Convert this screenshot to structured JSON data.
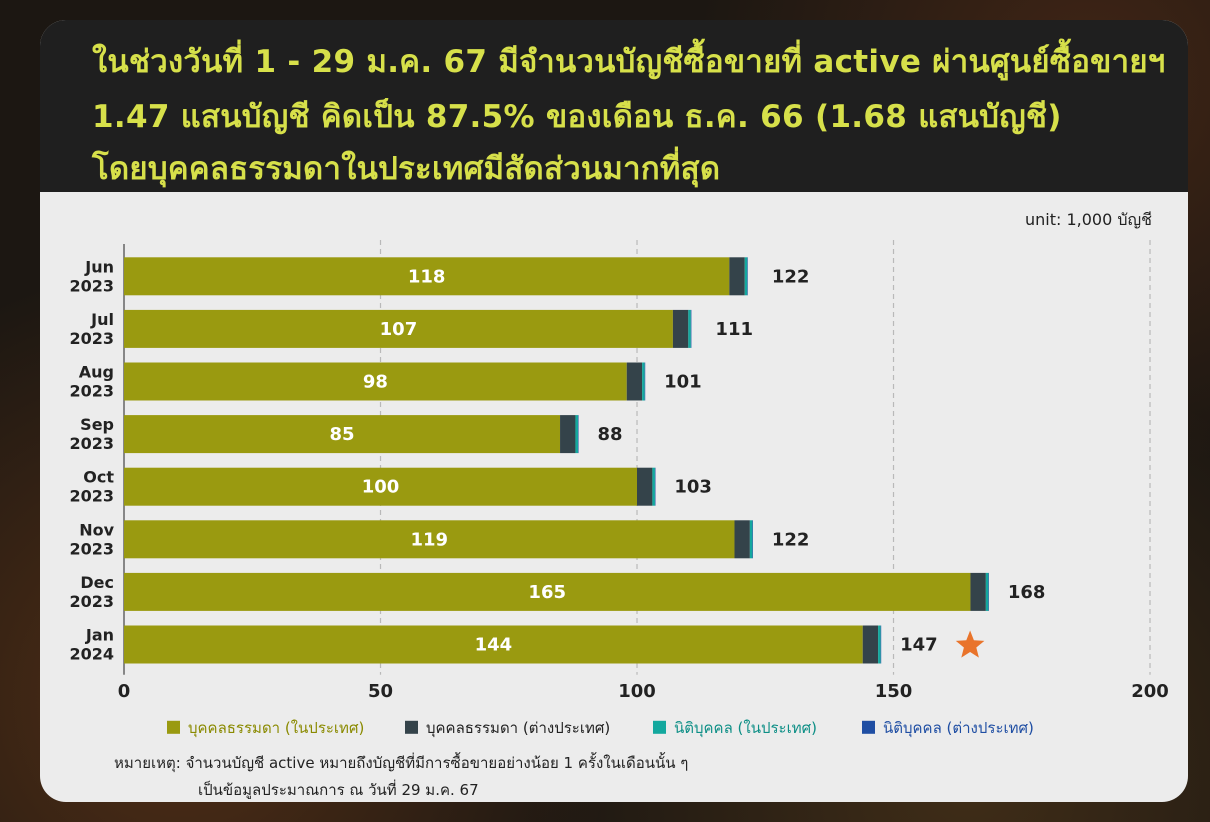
{
  "header": {
    "title_lines": [
      "ในช่วงวันที่ 1 - 29 ม.ค. 67 มีจำนวนบัญชีซื้อขายที่ active ผ่านศูนย์ซื้อขายฯ",
      "1.47 แสนบัญชี คิดเป็น 87.5% ของเดือน ธ.ค. 66 (1.68 แสนบัญชี)",
      "โดยบุคคลธรรมดาในประเทศมีสัดส่วนมากที่สุด"
    ]
  },
  "unit_label": "unit: 1,000 บัญชี",
  "colors": {
    "title": "#d7e04a",
    "domestic_individual": "#9a9a10",
    "foreign_individual": "#34434a",
    "domestic_juristic": "#13a89e",
    "foreign_juristic": "#1f4ea3",
    "highlight_star": "#e9742b"
  },
  "chart_data": {
    "type": "bar",
    "orientation": "horizontal",
    "stacked": true,
    "categories": [
      [
        "Jun",
        "2023"
      ],
      [
        "Jul",
        "2023"
      ],
      [
        "Aug",
        "2023"
      ],
      [
        "Sep",
        "2023"
      ],
      [
        "Oct",
        "2023"
      ],
      [
        "Nov",
        "2023"
      ],
      [
        "Dec",
        "2023"
      ],
      [
        "Jan",
        "2024"
      ]
    ],
    "series": [
      {
        "name": "บุคคลธรรมดา (ในประเทศ)",
        "values": [
          118,
          107,
          98,
          85,
          100,
          119,
          165,
          144
        ]
      },
      {
        "name": "บุคคลธรรมดา (ต่างประเทศ)",
        "values": [
          3,
          3,
          3,
          3,
          3,
          3,
          3,
          3
        ]
      },
      {
        "name": "นิติบุคคล (ในประเทศ)",
        "values": [
          0.5,
          0.5,
          0.5,
          0.5,
          0.5,
          0.5,
          0.5,
          0.5
        ]
      },
      {
        "name": "นิติบุคคล (ต่างประเทศ)",
        "values": [
          0.1,
          0.1,
          0.1,
          0.1,
          0.1,
          0.1,
          0.1,
          0.1
        ]
      }
    ],
    "segment_labels": [
      118,
      107,
      98,
      85,
      100,
      119,
      165,
      144
    ],
    "totals": [
      122,
      111,
      101,
      88,
      103,
      122,
      168,
      147
    ],
    "xlim": [
      0,
      200
    ],
    "xticks": [
      0,
      50,
      100,
      150,
      200
    ],
    "grid": "vertical dashed",
    "legend_position": "bottom",
    "highlight": {
      "category_index": 7,
      "marker": "star"
    }
  },
  "footnote": {
    "lines": [
      "หมายเหตุ: จำนวนบัญชี active หมายถึงบัญชีที่มีการซื้อขายอย่างน้อย 1 ครั้งในเดือนนั้น ๆ",
      "เป็นข้อมูลประมาณการ ณ วันที่ 29 ม.ค. 67"
    ]
  }
}
